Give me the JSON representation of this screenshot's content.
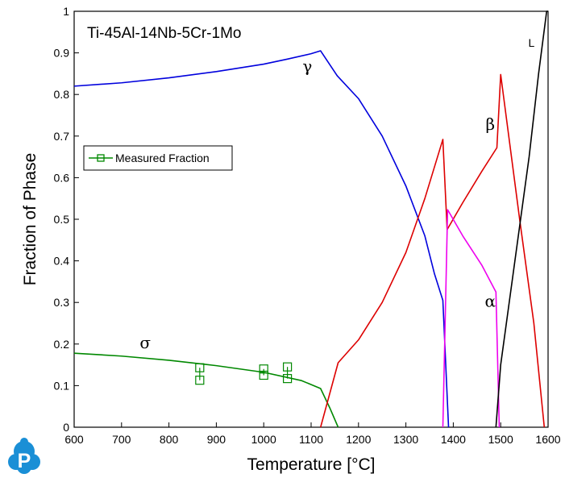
{
  "chart_data": {
    "type": "line",
    "title": "Ti-45Al-14Nb-5Cr-1Mo",
    "xlabel": "Temperature [°C]",
    "ylabel": "Fraction of Phase",
    "xlim": [
      600,
      1600
    ],
    "ylim": [
      0,
      1
    ],
    "x_ticks": [
      "600",
      "700",
      "800",
      "900",
      "1000",
      "1100",
      "1200",
      "1300",
      "1400",
      "1500",
      "1600"
    ],
    "y_ticks": [
      "0",
      "0.1",
      "0.2",
      "0.3",
      "0.4",
      "0.5",
      "0.6",
      "0.7",
      "0.8",
      "0.9",
      "1"
    ],
    "grid": false,
    "legend_placement": "left",
    "series": [
      {
        "label": "γ",
        "color": "#0000dd",
        "points": [
          [
            600,
            0.82
          ],
          [
            700,
            0.828
          ],
          [
            800,
            0.84
          ],
          [
            900,
            0.855
          ],
          [
            1000,
            0.873
          ],
          [
            1050,
            0.885
          ],
          [
            1100,
            0.898
          ],
          [
            1120,
            0.905
          ],
          [
            1155,
            0.845
          ],
          [
            1200,
            0.79
          ],
          [
            1250,
            0.7
          ],
          [
            1300,
            0.58
          ],
          [
            1340,
            0.46
          ],
          [
            1360,
            0.37
          ],
          [
            1378,
            0.305
          ],
          [
            1390,
            0.0
          ]
        ]
      },
      {
        "label": "σ",
        "color": "#008800",
        "points": [
          [
            600,
            0.178
          ],
          [
            700,
            0.171
          ],
          [
            800,
            0.161
          ],
          [
            900,
            0.148
          ],
          [
            1000,
            0.132
          ],
          [
            1080,
            0.112
          ],
          [
            1120,
            0.093
          ],
          [
            1140,
            0.045
          ],
          [
            1157,
            0.0
          ]
        ]
      },
      {
        "label": "β",
        "color": "#dd0000",
        "points": [
          [
            1120,
            0.0
          ],
          [
            1157,
            0.155
          ],
          [
            1200,
            0.21
          ],
          [
            1250,
            0.3
          ],
          [
            1300,
            0.42
          ],
          [
            1340,
            0.55
          ],
          [
            1378,
            0.692
          ],
          [
            1387,
            0.475
          ],
          [
            1420,
            0.54
          ],
          [
            1460,
            0.615
          ],
          [
            1492,
            0.672
          ],
          [
            1500,
            0.848
          ],
          [
            1540,
            0.5
          ],
          [
            1570,
            0.25
          ],
          [
            1592,
            0.0
          ]
        ]
      },
      {
        "label": "α",
        "color": "#ee00ee",
        "points": [
          [
            1378,
            0.0
          ],
          [
            1388,
            0.523
          ],
          [
            1420,
            0.46
          ],
          [
            1460,
            0.39
          ],
          [
            1490,
            0.325
          ],
          [
            1497,
            0.0
          ]
        ]
      },
      {
        "label": "L",
        "color": "#000000",
        "points": [
          [
            1490,
            0.0
          ],
          [
            1500,
            0.15
          ],
          [
            1530,
            0.4
          ],
          [
            1560,
            0.65
          ],
          [
            1580,
            0.85
          ],
          [
            1597,
            1.0
          ],
          [
            1600,
            1.0
          ]
        ]
      }
    ],
    "measured": {
      "label": "Measured Fraction",
      "color": "#008800",
      "points": [
        [
          865,
          0.143
        ],
        [
          865,
          0.113
        ],
        [
          1000,
          0.14
        ],
        [
          1000,
          0.125
        ],
        [
          1050,
          0.145
        ],
        [
          1050,
          0.117
        ]
      ]
    },
    "phase_labels": [
      {
        "text": "γ",
        "x": 1092,
        "y": 0.855
      },
      {
        "text": "σ",
        "x": 750,
        "y": 0.19
      },
      {
        "text": "β",
        "x": 1478,
        "y": 0.715
      },
      {
        "text": "α",
        "x": 1478,
        "y": 0.29
      },
      {
        "text": "L",
        "x": 1565,
        "y": 0.915
      }
    ]
  },
  "logo": {
    "letter": "P",
    "color": "#1a8fd6"
  }
}
